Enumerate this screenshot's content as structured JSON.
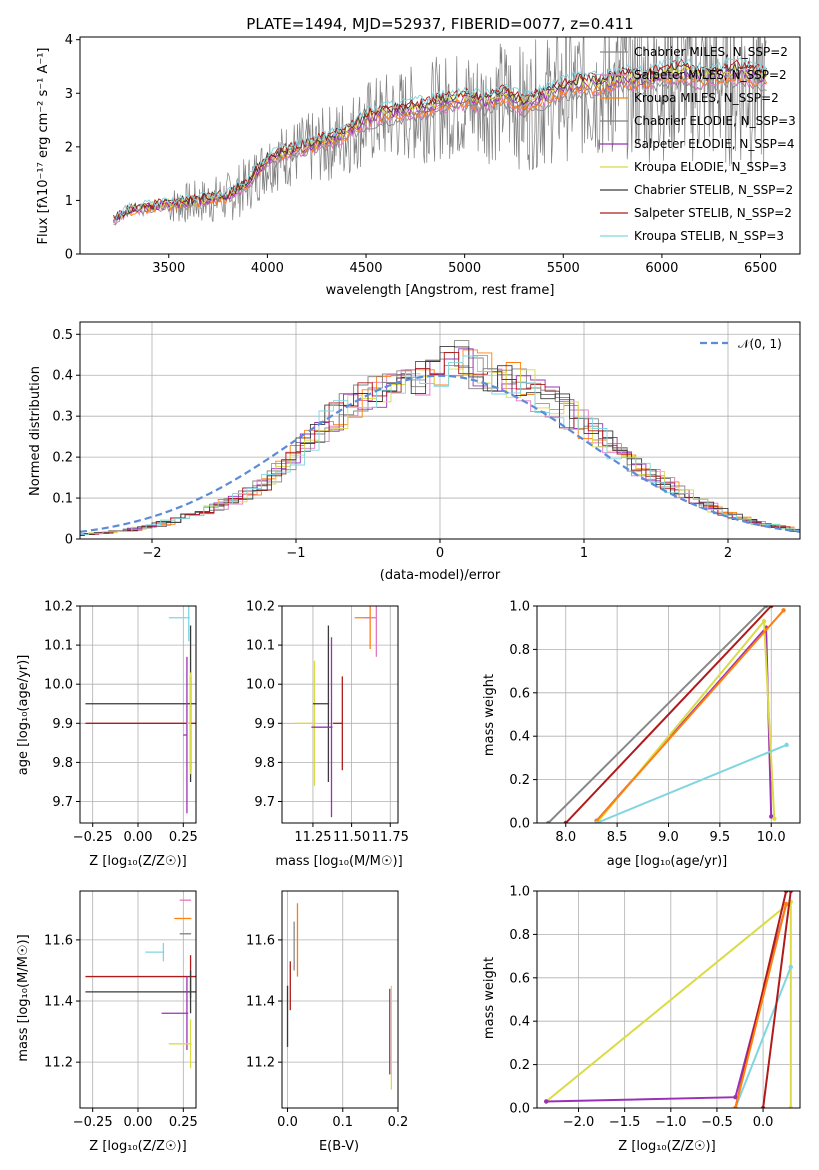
{
  "colors": {
    "series": [
      "#888888",
      "#e377c2",
      "#ff7f0e",
      "#7f7f7f",
      "#9b30b8",
      "#dbdb45",
      "#3a3a3a",
      "#b01a1a",
      "#7fd6e0"
    ],
    "ref": "#5b8bd9",
    "grid": "#b0b0b0",
    "spine": "#000000"
  },
  "chart_data": [
    {
      "type": "line",
      "title": "PLATE=1494, MJD=52937, FIBERID=0077, z=0.411",
      "xlabel": "wavelength [Angstrom, rest frame]",
      "ylabel": "Flux [fλ10⁻¹⁷ erg cm⁻² s⁻¹ A⁻¹]",
      "xlim": [
        3050,
        6700
      ],
      "ylim": [
        0,
        4.05
      ],
      "xticks": [
        3500,
        4000,
        4500,
        5000,
        5500,
        6000,
        6500
      ],
      "yticks": [
        0,
        1,
        2,
        3,
        4
      ],
      "grid": false,
      "legend_position": "right",
      "legend": [
        "Chabrier MILES, N_SSP=2",
        "Salpeter MILES, N_SSP=2",
        "Kroupa MILES, N_SSP=2",
        "Chabrier ELODIE, N_SSP=3",
        "Salpeter ELODIE, N_SSP=4",
        "Kroupa ELODIE, N_SSP=3",
        "Chabrier STELIB, N_SSP=2",
        "Salpeter STELIB, N_SSP=2",
        "Kroupa STELIB, N_SSP=3"
      ],
      "data_curve": {
        "x": [
          3220,
          3300,
          3400,
          3500,
          3600,
          3700,
          3800,
          3900,
          4000,
          4100,
          4200,
          4300,
          4400,
          4500,
          4600,
          4700,
          4800,
          4900,
          5000,
          5100,
          5200,
          5300,
          5400,
          5500,
          5600,
          5700,
          5800,
          5900,
          6000,
          6100,
          6200,
          6300,
          6400,
          6500
        ],
        "y": [
          0.6,
          0.8,
          0.85,
          0.9,
          0.95,
          1.0,
          1.05,
          1.3,
          1.7,
          1.85,
          1.95,
          2.05,
          2.2,
          2.45,
          2.55,
          2.6,
          2.65,
          2.75,
          2.8,
          2.75,
          2.9,
          2.7,
          2.85,
          3.0,
          3.1,
          3.05,
          3.2,
          3.15,
          3.25,
          3.3,
          3.2,
          3.25,
          3.3,
          3.2
        ]
      }
    },
    {
      "type": "histogram",
      "xlabel": "(data-model)/error",
      "ylabel": "Normed distribution",
      "xlim": [
        -2.5,
        2.5
      ],
      "ylim": [
        0,
        0.53
      ],
      "xticks": [
        -2,
        -1,
        0,
        1,
        2
      ],
      "xtick_labels": [
        "−2",
        "−1",
        "0",
        "1",
        "2"
      ],
      "yticks": [
        0,
        0.1,
        0.2,
        0.3,
        0.4,
        0.5
      ],
      "grid": true,
      "legend_position": "top-right",
      "reference_curve": {
        "label": "𝒩(0, 1)",
        "mean": 0,
        "sigma": 1,
        "style": "dashed"
      },
      "histogram_envelope": {
        "x": [
          -2.5,
          -2.2,
          -2,
          -1.8,
          -1.6,
          -1.4,
          -1.2,
          -1,
          -0.8,
          -0.6,
          -0.4,
          -0.2,
          0,
          0.1,
          0.2,
          0.4,
          0.6,
          0.8,
          1,
          1.2,
          1.4,
          1.6,
          1.8,
          2,
          2.2,
          2.5
        ],
        "y": [
          0.01,
          0.02,
          0.03,
          0.05,
          0.07,
          0.1,
          0.14,
          0.2,
          0.28,
          0.33,
          0.36,
          0.39,
          0.4,
          0.45,
          0.42,
          0.4,
          0.37,
          0.33,
          0.28,
          0.22,
          0.17,
          0.13,
          0.09,
          0.06,
          0.04,
          0.02
        ]
      }
    },
    {
      "type": "scatter",
      "xlabel": "Z [log₁₀(Z/Z☉)]",
      "ylabel": "age  [log₁₀(age/yr)]",
      "xlim": [
        -0.32,
        0.32
      ],
      "ylim": [
        9.645,
        10.2
      ],
      "xticks": [
        -0.25,
        0,
        0.25
      ],
      "xtick_labels": [
        "−0.25",
        "0.00",
        "0.25"
      ],
      "yticks": [
        9.7,
        9.8,
        9.9,
        10.0,
        10.1,
        10.2
      ],
      "ytick_labels": [
        "9.7",
        "9.8",
        "9.9",
        "10.0",
        "10.1",
        "10.2"
      ],
      "grid": true,
      "points": [
        {
          "x": 0.28,
          "y": 10.17,
          "xerr": 0.11,
          "yerr": 0.06,
          "series": 8
        },
        {
          "x": 0.29,
          "y": 9.95,
          "xerr": 0.58,
          "yerr": 0.2,
          "series": 6
        },
        {
          "x": 0.29,
          "y": 9.9,
          "xerr": 0.58,
          "yerr": 0.12,
          "series": 7
        },
        {
          "x": 0.27,
          "y": 9.87,
          "xerr": 0.02,
          "yerr": 0.2,
          "series": 4
        },
        {
          "x": 0.29,
          "y": 9.9,
          "xerr": 0.02,
          "yerr": 0.13,
          "series": 5
        }
      ]
    },
    {
      "type": "scatter",
      "xlabel": "mass [log₁₀(M/M☉)]",
      "ylabel": "",
      "xlim": [
        11.05,
        11.8
      ],
      "ylim": [
        9.645,
        10.2
      ],
      "xticks": [
        11.25,
        11.5,
        11.75
      ],
      "xtick_labels": [
        "11.25",
        "11.50",
        "11.75"
      ],
      "yticks": [
        9.7,
        9.8,
        9.9,
        10.0,
        10.1,
        10.2
      ],
      "ytick_labels": [
        "9.7",
        "9.8",
        "9.9",
        "10.0",
        "10.1",
        "10.2"
      ],
      "grid": true,
      "points": [
        {
          "x": 11.26,
          "y": 9.9,
          "xerr": 0.13,
          "yerr": 0.16,
          "series": 5
        },
        {
          "x": 11.35,
          "y": 9.95,
          "xerr": 0.1,
          "yerr": 0.2,
          "series": 6
        },
        {
          "x": 11.44,
          "y": 9.9,
          "xerr": 0.06,
          "yerr": 0.12,
          "series": 7
        },
        {
          "x": 11.37,
          "y": 9.89,
          "xerr": 0.13,
          "yerr": 0.23,
          "series": 4
        },
        {
          "x": 11.62,
          "y": 10.17,
          "xerr": 0.1,
          "yerr": 0.08,
          "series": 2
        },
        {
          "x": 11.66,
          "y": 10.17,
          "xerr": 0.08,
          "yerr": 0.1,
          "series": 1
        }
      ]
    },
    {
      "type": "line",
      "xlabel": "age  [log₁₀(age/yr)]",
      "ylabel": "mass weight",
      "xlim": [
        7.72,
        10.28
      ],
      "ylim": [
        0,
        1.0
      ],
      "xticks": [
        8.0,
        8.5,
        9.0,
        9.5,
        10.0
      ],
      "xtick_labels": [
        "8.0",
        "8.5",
        "9.0",
        "9.5",
        "10.0"
      ],
      "yticks": [
        0,
        0.2,
        0.4,
        0.6,
        0.8,
        1.0
      ],
      "ytick_labels": [
        "0.0",
        "0.2",
        "0.4",
        "0.6",
        "0.8",
        "1.0"
      ],
      "grid": true,
      "series": [
        {
          "values": [
            [
              7.83,
              0
            ],
            [
              9.95,
              1.0
            ]
          ],
          "series": 0
        },
        {
          "values": [
            [
              8.0,
              0
            ],
            [
              10.0,
              1.0
            ]
          ],
          "series": 7
        },
        {
          "values": [
            [
              8.3,
              0.01
            ],
            [
              9.95,
              0.9
            ],
            [
              10.0,
              0.03
            ]
          ],
          "series": 4
        },
        {
          "values": [
            [
              8.32,
              0.01
            ],
            [
              9.93,
              0.93
            ],
            [
              10.03,
              0.02
            ]
          ],
          "series": 5
        },
        {
          "values": [
            [
              8.3,
              0.01
            ],
            [
              10.12,
              0.98
            ]
          ],
          "series": 2
        },
        {
          "values": [
            [
              8.3,
              0
            ],
            [
              10.15,
              0.36
            ]
          ],
          "series": 8
        }
      ]
    },
    {
      "type": "scatter",
      "xlabel": "Z [log₁₀(Z/Z☉)]",
      "ylabel": "mass [log₁₀(M/M☉)]",
      "xlim": [
        -0.32,
        0.32
      ],
      "ylim": [
        11.05,
        11.76
      ],
      "xticks": [
        -0.25,
        0,
        0.25
      ],
      "xtick_labels": [
        "−0.25",
        "0.00",
        "0.25"
      ],
      "yticks": [
        11.2,
        11.4,
        11.6
      ],
      "ytick_labels": [
        "11.2",
        "11.4",
        "11.6"
      ],
      "grid": true,
      "points": [
        {
          "x": 0.29,
          "y": 11.73,
          "xerr": 0.06,
          "yerr": 0.0,
          "series": 1
        },
        {
          "x": 0.29,
          "y": 11.67,
          "xerr": 0.09,
          "yerr": 0.0,
          "series": 2
        },
        {
          "x": 0.29,
          "y": 11.62,
          "xerr": 0.06,
          "yerr": 0.0,
          "series": 3
        },
        {
          "x": 0.14,
          "y": 11.56,
          "xerr": 0.1,
          "yerr": 0.03,
          "series": 8
        },
        {
          "x": 0.29,
          "y": 11.48,
          "xerr": 0.58,
          "yerr": 0.07,
          "series": 7
        },
        {
          "x": 0.29,
          "y": 11.43,
          "xerr": 0.58,
          "yerr": 0.07,
          "series": 6
        },
        {
          "x": 0.27,
          "y": 11.36,
          "xerr": 0.14,
          "yerr": 0.12,
          "series": 4
        },
        {
          "x": 0.29,
          "y": 11.26,
          "xerr": 0.12,
          "yerr": 0.08,
          "series": 5
        }
      ]
    },
    {
      "type": "scatter",
      "xlabel": "E(B-V)",
      "ylabel": "",
      "xlim": [
        -0.01,
        0.2
      ],
      "ylim": [
        11.05,
        11.76
      ],
      "xticks": [
        0,
        0.1,
        0.2
      ],
      "xtick_labels": [
        "0.0",
        "0.1",
        "0.2"
      ],
      "yticks": [
        11.2,
        11.4,
        11.6
      ],
      "ytick_labels": [
        "11.2",
        "11.4",
        "11.6"
      ],
      "grid": true,
      "points": [
        {
          "x": 0.0,
          "y": 11.35,
          "yerr": 0.1,
          "series": 6
        },
        {
          "x": 0.005,
          "y": 11.45,
          "yerr": 0.08,
          "series": 7
        },
        {
          "x": 0.012,
          "y": 11.58,
          "yerr": 0.08,
          "series": 0
        },
        {
          "x": 0.018,
          "y": 11.6,
          "yerr": 0.12,
          "series": 2
        },
        {
          "x": 0.185,
          "y": 11.3,
          "yerr": 0.14,
          "series": 4
        },
        {
          "x": 0.188,
          "y": 11.28,
          "yerr": 0.17,
          "series": 5
        }
      ]
    },
    {
      "type": "line",
      "xlabel": "Z [log₁₀(Z/Z☉)]",
      "ylabel": "mass weight",
      "xlim": [
        -2.45,
        0.4
      ],
      "ylim": [
        0,
        1.0
      ],
      "xticks": [
        -2.0,
        -1.5,
        -1.0,
        -0.5,
        0.0
      ],
      "xtick_labels": [
        "−2.0",
        "−1.5",
        "−1.0",
        "−0.5",
        "0.0"
      ],
      "yticks": [
        0,
        0.2,
        0.4,
        0.6,
        0.8,
        1.0
      ],
      "ytick_labels": [
        "0.0",
        "0.2",
        "0.4",
        "0.6",
        "0.8",
        "1.0"
      ],
      "grid": true,
      "series": [
        {
          "values": [
            [
              -2.35,
              0.03
            ],
            [
              0.3,
              0.95
            ],
            [
              0.3,
              0
            ]
          ],
          "series": 5
        },
        {
          "values": [
            [
              -2.35,
              0.03
            ],
            [
              -0.3,
              0.05
            ],
            [
              0.25,
              0.94
            ]
          ],
          "series": 4
        },
        {
          "values": [
            [
              -0.3,
              0.0
            ],
            [
              0.3,
              0.65
            ]
          ],
          "series": 8
        },
        {
          "values": [
            [
              -0.3,
              0.0
            ],
            [
              0.25,
              1.0
            ]
          ],
          "series": 7
        },
        {
          "values": [
            [
              0.0,
              0.0
            ],
            [
              0.3,
              1.0
            ]
          ],
          "series": 7
        },
        {
          "values": [
            [
              -0.3,
              0.0
            ],
            [
              0.25,
              0.94
            ]
          ],
          "series": 2
        }
      ]
    }
  ]
}
